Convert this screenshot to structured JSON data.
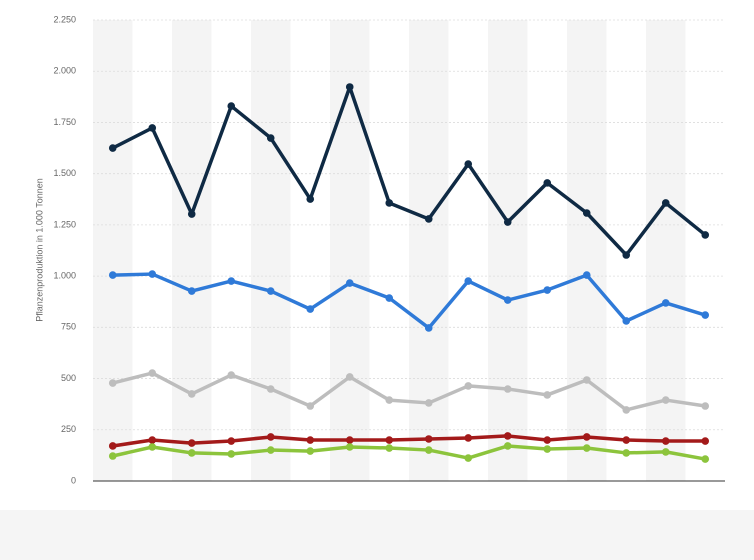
{
  "chart_data": {
    "type": "line",
    "y_label": "Pflanzenproduktion in 1.000 Tonnen",
    "categories": [
      null,
      null,
      null,
      null,
      null,
      null,
      null,
      null,
      null,
      null,
      null,
      null,
      null,
      null,
      null,
      null
    ],
    "series": [
      {
        "color": "#0f2a44",
        "values": [
          1625,
          1723,
          1303,
          1830,
          1674,
          1376,
          1923,
          1357,
          1279,
          1547,
          1264,
          1455,
          1308,
          1103,
          1357,
          1201
        ]
      },
      {
        "color": "#2f7ad8",
        "values": [
          1005,
          1010,
          927,
          976,
          927,
          839,
          966,
          893,
          747,
          976,
          883,
          932,
          1005,
          781,
          869,
          810
        ]
      },
      {
        "color": "#bdbdbd",
        "values": [
          478,
          527,
          425,
          517,
          449,
          366,
          508,
          395,
          381,
          464,
          449,
          420,
          493,
          347,
          395,
          366
        ]
      },
      {
        "color": "#a31a1a",
        "values": [
          171,
          200,
          185,
          195,
          215,
          200,
          200,
          200,
          205,
          210,
          220,
          200,
          215,
          200,
          195,
          195
        ]
      },
      {
        "color": "#8cc43c",
        "values": [
          122,
          166,
          137,
          132,
          151,
          146,
          166,
          161,
          151,
          112,
          171,
          156,
          161,
          137,
          142,
          107
        ]
      }
    ],
    "ylim": [
      0,
      2250
    ],
    "yticks": [
      0,
      250,
      500,
      750,
      {
        "value": 1000,
        "label": "1.000"
      },
      {
        "value": 1250,
        "label": "1.250"
      },
      {
        "value": 1500,
        "label": "1.500"
      },
      {
        "value": 1750,
        "label": "1.750"
      },
      {
        "value": 2000,
        "label": "2.000"
      },
      {
        "value": 2250,
        "label": "2.250"
      }
    ],
    "grid": true
  }
}
